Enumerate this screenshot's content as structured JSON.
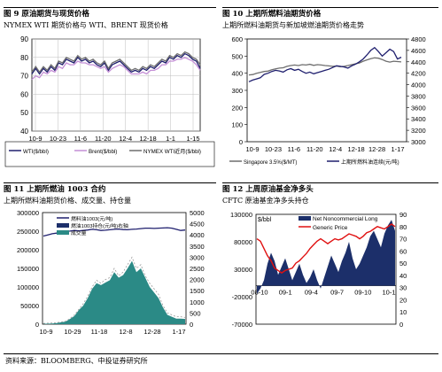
{
  "footer": {
    "source": "资料来源：BLOOMBERG、中投证券研究所"
  },
  "colors": {
    "navy": "#1f1f6e",
    "purple": "#c48fd6",
    "gray": "#6e6e6e",
    "red": "#e01010",
    "teal": "#2b8a86"
  },
  "chart_data": [
    {
      "id": "fig9",
      "title": "图 9 原油期货与现货价格",
      "subtitle": "NYMEX WTI 期货价格与 WTI、BRENT 现货价格",
      "type": "line",
      "x_ticks": [
        "10-9",
        "10-23",
        "11-6",
        "11-20",
        "12-4",
        "12-18",
        "1-1",
        "1-15"
      ],
      "y_ticks": [
        40,
        50,
        60,
        70,
        80,
        90
      ],
      "ylim": [
        40,
        90
      ],
      "grid": true,
      "legend_position": "bottom",
      "series": [
        {
          "name": "WTI($/bbl)",
          "color": "#1f1f6e",
          "values": [
            71,
            74,
            71,
            74,
            72,
            75,
            73,
            77,
            76,
            79,
            78,
            77,
            80,
            78,
            79,
            77,
            78,
            76,
            75,
            77,
            73,
            76,
            77,
            78,
            76,
            74,
            72,
            73,
            72,
            74,
            73,
            75,
            74,
            76,
            78,
            77,
            80,
            79,
            81,
            80,
            82,
            81,
            79,
            78,
            74
          ]
        },
        {
          "name": "Brent($/bbl)",
          "color": "#c48fd6",
          "values": [
            68,
            70,
            69,
            72,
            71,
            73,
            72,
            75,
            74,
            77,
            76,
            76,
            78,
            77,
            77,
            76,
            76,
            75,
            74,
            75,
            72,
            74,
            75,
            76,
            75,
            73,
            71,
            71,
            71,
            72,
            71,
            73,
            73,
            74,
            76,
            76,
            78,
            78,
            79,
            79,
            80,
            79,
            78,
            76,
            73
          ]
        },
        {
          "name": "NYMEX WTI近月($/bbl)",
          "color": "#6e6e6e",
          "values": [
            72,
            75,
            72,
            75,
            73,
            76,
            74,
            78,
            77,
            80,
            79,
            78,
            81,
            79,
            80,
            78,
            79,
            77,
            76,
            78,
            74,
            77,
            78,
            79,
            77,
            75,
            73,
            74,
            73,
            75,
            74,
            76,
            75,
            77,
            79,
            78,
            81,
            80,
            82,
            81,
            83,
            82,
            80,
            79,
            76
          ]
        }
      ]
    },
    {
      "id": "fig10",
      "title": "图 10 上期所燃料油期货价格",
      "subtitle": "上期所燃料油期货与新加坡燃油期货价格走势",
      "type": "line",
      "x_ticks": [
        "10-9",
        "10-23",
        "11-6",
        "11-20",
        "12-4",
        "12-18",
        "12-28",
        "1-17"
      ],
      "y_left_ticks": [
        0,
        100,
        200,
        300,
        400,
        500,
        600
      ],
      "ylim_left": [
        0,
        600
      ],
      "y_right_ticks": [
        3000,
        3200,
        3400,
        3600,
        3800,
        4000,
        4200,
        4400,
        4600,
        4800
      ],
      "ylim_right": [
        3000,
        4800
      ],
      "grid": false,
      "legend_position": "bottom",
      "series": [
        {
          "name": "Singapore 3.5%($/MT)",
          "color": "#6e6e6e",
          "axis": "left",
          "values": [
            390,
            392,
            400,
            405,
            410,
            412,
            420,
            425,
            430,
            432,
            440,
            445,
            448,
            445,
            450,
            448,
            452,
            446,
            450,
            448,
            445,
            443,
            440,
            442,
            438,
            440,
            445,
            450,
            455,
            460,
            470,
            478,
            485,
            490,
            488,
            480,
            470,
            465,
            470,
            468,
            466
          ]
        },
        {
          "name": "上期所燃料油连续(元/吨)",
          "color": "#1f1f6e",
          "axis": "right",
          "values": [
            4050,
            4080,
            4100,
            4120,
            4180,
            4200,
            4230,
            4250,
            4240,
            4220,
            4260,
            4280,
            4250,
            4270,
            4230,
            4200,
            4220,
            4190,
            4210,
            4230,
            4250,
            4270,
            4300,
            4330,
            4320,
            4310,
            4290,
            4330,
            4360,
            4400,
            4450,
            4520,
            4600,
            4650,
            4580,
            4500,
            4560,
            4620,
            4580,
            4450,
            4480
          ]
        }
      ]
    },
    {
      "id": "fig11",
      "title": "图 11 上期所燃油 1003 合约",
      "subtitle": "上期所燃料油期货价格、成交量、持仓量",
      "type": "area",
      "x_ticks": [
        "10-9",
        "10-29",
        "11-18",
        "12-8",
        "12-28",
        "1-17"
      ],
      "y_left_ticks": [
        0,
        50000,
        100000,
        150000,
        200000,
        250000,
        300000
      ],
      "ylim_left": [
        0,
        300000
      ],
      "y_right_ticks": [
        0,
        500,
        1000,
        1500,
        2000,
        2500,
        3000,
        3500,
        4000,
        4500,
        5000
      ],
      "ylim_right": [
        0,
        5000
      ],
      "grid": false,
      "legend_position": "top-left",
      "series": [
        {
          "name": "燃料油1003(元/吨)",
          "color": "#1f1f6e",
          "axis": "right",
          "kind": "line",
          "values": [
            3950,
            4000,
            4050,
            4080,
            4100,
            4150,
            4170,
            4200,
            4180,
            4200,
            4220,
            4250,
            4230,
            4200,
            4210,
            4230,
            4250,
            4260,
            4240,
            4230,
            4250,
            4260,
            4280,
            4300,
            4300,
            4290,
            4300,
            4310,
            4320,
            4300,
            4250,
            4200,
            4220
          ]
        },
        {
          "name": "燃油1003持仓(元/吨)右轴",
          "color": "#1c2f6a",
          "axis": "left",
          "kind": "area",
          "values": [
            2000,
            2500,
            3000,
            4000,
            6000,
            8000,
            15000,
            25000,
            40000,
            55000,
            75000,
            100000,
            118000,
            110000,
            120000,
            125000,
            150000,
            130000,
            140000,
            160000,
            180000,
            150000,
            160000,
            130000,
            110000,
            95000,
            80000,
            50000,
            30000,
            25000,
            20000,
            20000,
            18000
          ]
        },
        {
          "name": "成交量",
          "color": "#2b8a86",
          "axis": "left",
          "kind": "area",
          "values": [
            1000,
            1500,
            2000,
            3000,
            5000,
            7000,
            14000,
            22000,
            38000,
            50000,
            70000,
            95000,
            110000,
            105000,
            112000,
            118000,
            140000,
            125000,
            132000,
            150000,
            170000,
            140000,
            150000,
            125000,
            100000,
            85000,
            70000,
            45000,
            25000,
            20000,
            15000,
            15000,
            14000
          ]
        }
      ]
    },
    {
      "id": "fig12",
      "title": "图 12 上周原油基金净多头",
      "subtitle": "CFTC 原油基金净多头持仓",
      "type": "area",
      "x_ticks": [
        "08-10",
        "09-1",
        "09-4",
        "09-7",
        "09-10",
        "10-1"
      ],
      "y_left_label": "$/bbl",
      "y_left_ticks": [
        -70000,
        -20000,
        30000,
        80000,
        130000
      ],
      "ylim_left": [
        -70000,
        130000
      ],
      "y_right_ticks": [
        0,
        10,
        20,
        30,
        40,
        50,
        60,
        70,
        80,
        90
      ],
      "ylim_right": [
        0,
        90
      ],
      "grid": false,
      "legend_position": "top",
      "series": [
        {
          "name": "Net Noncommercial Long",
          "color": "#1c2f6a",
          "axis": "left",
          "kind": "area",
          "values": [
            -15000,
            -5000,
            10000,
            40000,
            60000,
            45000,
            20000,
            35000,
            50000,
            30000,
            10000,
            25000,
            40000,
            20000,
            5000,
            15000,
            30000,
            10000,
            -5000,
            15000,
            35000,
            55000,
            40000,
            25000,
            45000,
            60000,
            80000,
            50000,
            30000,
            40000,
            55000,
            70000,
            90000,
            100000,
            85000,
            70000,
            95000,
            110000,
            120000,
            100000
          ]
        },
        {
          "name": "Generic Price",
          "color": "#e01010",
          "axis": "right",
          "kind": "line",
          "values": [
            70,
            68,
            62,
            56,
            52,
            46,
            44,
            42,
            44,
            45,
            46,
            50,
            52,
            55,
            58,
            62,
            65,
            68,
            70,
            68,
            66,
            68,
            70,
            69,
            70,
            72,
            74,
            73,
            72,
            70,
            72,
            75,
            76,
            78,
            80,
            79,
            78,
            80,
            82,
            80
          ]
        }
      ]
    }
  ]
}
